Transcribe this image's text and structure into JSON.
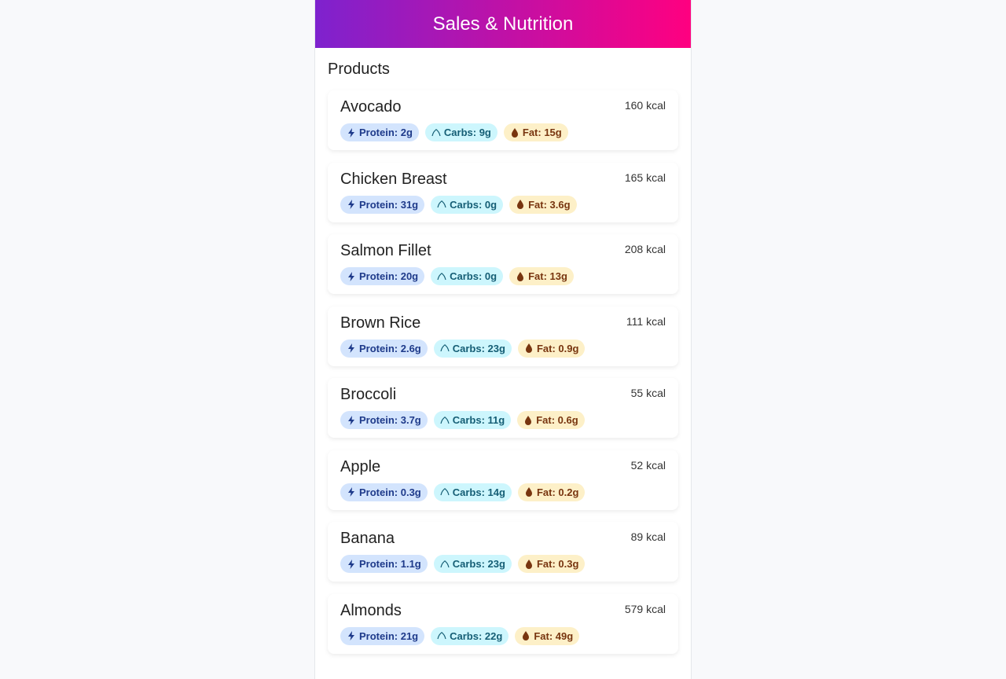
{
  "header": {
    "title": "Sales & Nutrition"
  },
  "section_title": "Products",
  "colors": {
    "protein_bg": "#d3e4fd",
    "carbs_bg": "#cdf6fd",
    "fat_bg": "#fdf0c8"
  },
  "products": [
    {
      "name": "Avocado",
      "kcal": "160 kcal",
      "protein": "Protein: 2g",
      "carbs": "Carbs: 9g",
      "fat": "Fat: 15g"
    },
    {
      "name": "Chicken Breast",
      "kcal": "165 kcal",
      "protein": "Protein: 31g",
      "carbs": "Carbs: 0g",
      "fat": "Fat: 3.6g"
    },
    {
      "name": "Salmon Fillet",
      "kcal": "208 kcal",
      "protein": "Protein: 20g",
      "carbs": "Carbs: 0g",
      "fat": "Fat: 13g"
    },
    {
      "name": "Brown Rice",
      "kcal": "111 kcal",
      "protein": "Protein: 2.6g",
      "carbs": "Carbs: 23g",
      "fat": "Fat: 0.9g"
    },
    {
      "name": "Broccoli",
      "kcal": "55 kcal",
      "protein": "Protein: 3.7g",
      "carbs": "Carbs: 11g",
      "fat": "Fat: 0.6g"
    },
    {
      "name": "Apple",
      "kcal": "52 kcal",
      "protein": "Protein: 0.3g",
      "carbs": "Carbs: 14g",
      "fat": "Fat: 0.2g"
    },
    {
      "name": "Banana",
      "kcal": "89 kcal",
      "protein": "Protein: 1.1g",
      "carbs": "Carbs: 23g",
      "fat": "Fat: 0.3g"
    },
    {
      "name": "Almonds",
      "kcal": "579 kcal",
      "protein": "Protein: 21g",
      "carbs": "Carbs: 22g",
      "fat": "Fat: 49g"
    }
  ]
}
